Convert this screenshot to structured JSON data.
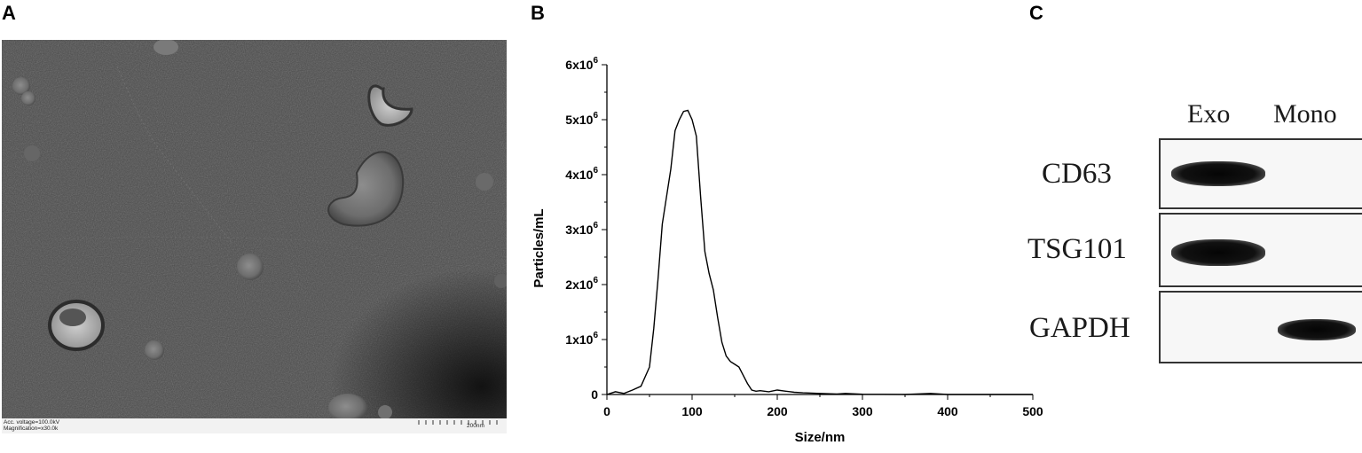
{
  "panels": {
    "a": "A",
    "b": "B",
    "c": "C"
  },
  "tem": {
    "meta_line1": "Acc. voltage=100.0kV",
    "meta_line2": "Magnification=x30.0k",
    "scale_label": "200nm"
  },
  "chart_data": {
    "type": "line",
    "xlabel": "Size/nm",
    "ylabel": "Particles/mL",
    "xlim": [
      0,
      500
    ],
    "ylim": [
      0,
      6000000
    ],
    "x_ticks": [
      0,
      100,
      200,
      300,
      400,
      500
    ],
    "y_ticks": [
      0,
      1000000,
      2000000,
      3000000,
      4000000,
      5000000,
      6000000
    ],
    "y_tick_labels": [
      "0",
      "1x10^6",
      "2x10^6",
      "3x10^6",
      "4x10^6",
      "5x10^6",
      "6x10^6"
    ],
    "grid": false,
    "series": [
      {
        "x": [
          0,
          10,
          20,
          30,
          40,
          50,
          55,
          60,
          65,
          70,
          75,
          80,
          85,
          90,
          95,
          100,
          105,
          110,
          115,
          120,
          125,
          130,
          135,
          140,
          145,
          150,
          155,
          160,
          165,
          170,
          175,
          180,
          190,
          200,
          210,
          220,
          230,
          250,
          270,
          280,
          300,
          350,
          380,
          400,
          450,
          500
        ],
        "y": [
          0,
          50000,
          20000,
          80000,
          150000,
          500000,
          1200000,
          2100000,
          3100000,
          3600000,
          4100000,
          4800000,
          5000000,
          5150000,
          5170000,
          5000000,
          4700000,
          3600000,
          2600000,
          2200000,
          1900000,
          1400000,
          950000,
          700000,
          600000,
          550000,
          500000,
          350000,
          200000,
          80000,
          60000,
          70000,
          50000,
          80000,
          60000,
          40000,
          30000,
          20000,
          10000,
          20000,
          5000,
          0,
          20000,
          0,
          0,
          0
        ]
      }
    ]
  },
  "western_blot": {
    "lanes": [
      "Exo",
      "Mono"
    ],
    "rows": [
      {
        "label": "CD63",
        "bands": [
          1.0,
          0.0
        ]
      },
      {
        "label": "TSG101",
        "bands": [
          1.0,
          0.0
        ]
      },
      {
        "label": "GAPDH",
        "bands": [
          0.0,
          0.9
        ]
      }
    ]
  }
}
